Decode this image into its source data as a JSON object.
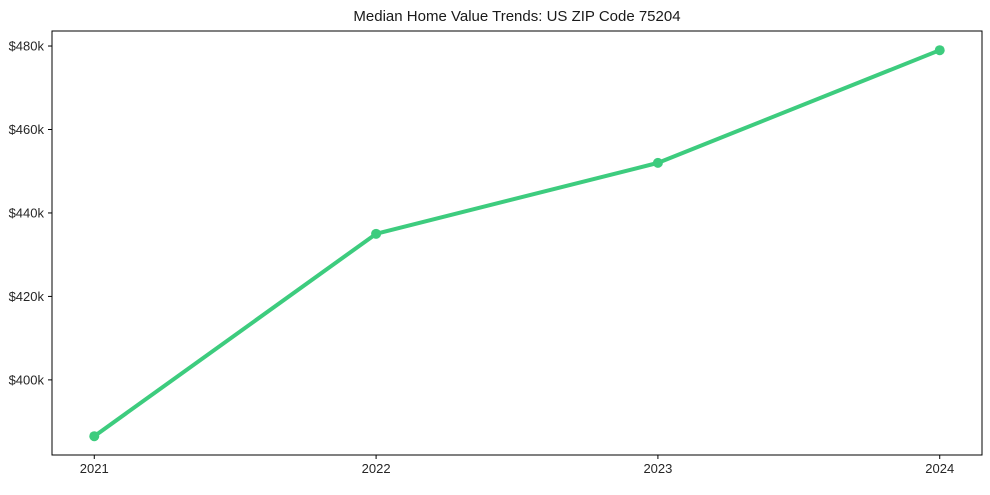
{
  "chart_data": {
    "type": "line",
    "title": "Median Home Value Trends: US ZIP Code 75204",
    "xlabel": "",
    "ylabel": "",
    "x": [
      2021,
      2022,
      2023,
      2024
    ],
    "x_tick_labels": [
      "2021",
      "2022",
      "2023",
      "2024"
    ],
    "series": [
      {
        "name": "median-home-value",
        "values": [
          386500,
          435000,
          452000,
          479000
        ]
      }
    ],
    "y_ticks": [
      400000,
      420000,
      440000,
      460000,
      480000
    ],
    "y_tick_labels": [
      "$400k",
      "$420k",
      "$440k",
      "$460k",
      "$480k"
    ],
    "xlim": [
      2020.85,
      2024.15
    ],
    "ylim": [
      382000,
      483600
    ],
    "grid": false,
    "legend": false,
    "marker": "circle",
    "colors": {
      "line": "#3dcc7e",
      "text": "#262626",
      "axis": "#000000",
      "background": "#ffffff"
    }
  }
}
